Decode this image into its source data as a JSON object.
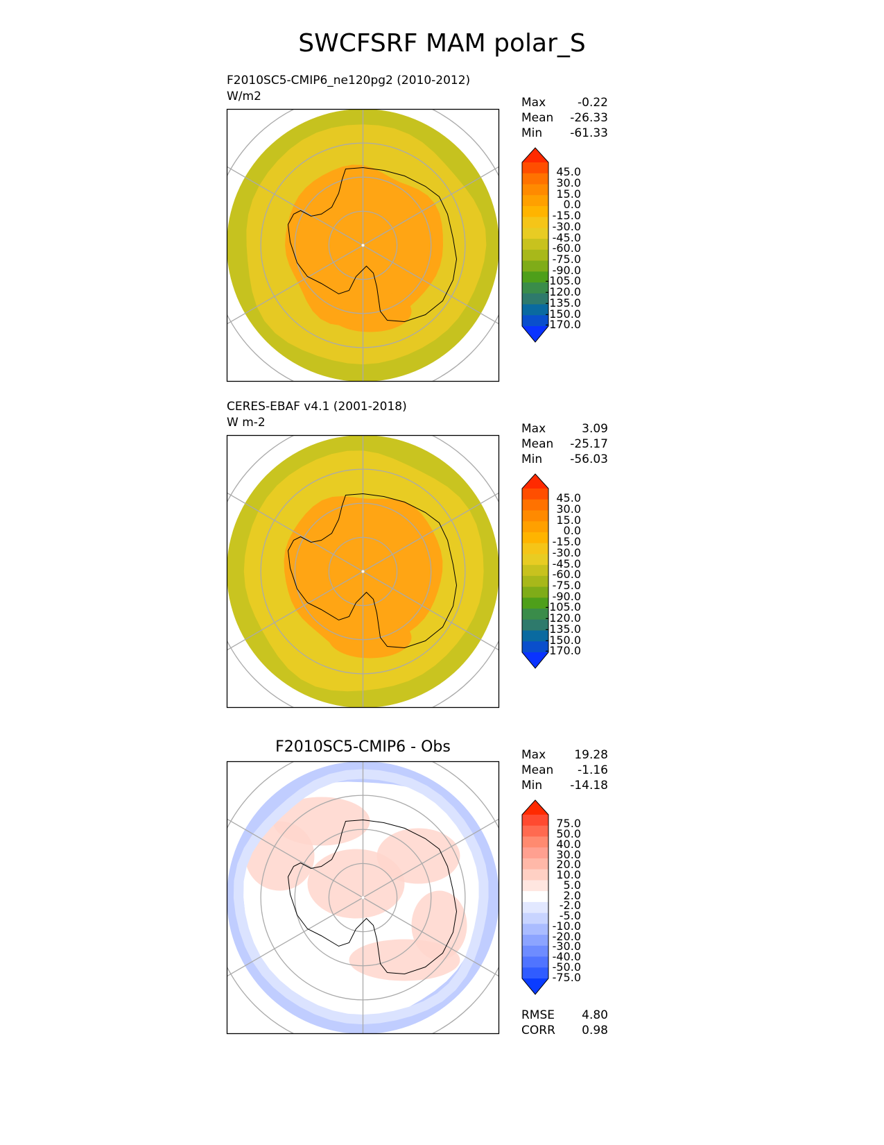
{
  "title": "SWCFSRF MAM polar_S",
  "panels": [
    {
      "id": "test",
      "title_lines": [
        "F2010SC5-CMIP6_ne120pg2 (2010-2012)",
        "W/m2"
      ],
      "center_title": "",
      "stats": [
        {
          "label": "Max",
          "value": "-0.22"
        },
        {
          "label": "Mean",
          "value": "-26.33"
        },
        {
          "label": "Min",
          "value": "-61.33"
        }
      ],
      "extra_stats": [],
      "colorbar": {
        "labels": [
          "45.0",
          "30.0",
          "15.0",
          "0.0",
          "-15.0",
          "-30.0",
          "-45.0",
          "-60.0",
          "-75.0",
          "-90.0",
          "-105.0",
          "-120.0",
          "-135.0",
          "-150.0",
          "-170.0"
        ],
        "colors": [
          "#ff2a00",
          "#ff4e00",
          "#ff7200",
          "#ff8a00",
          "#ffa000",
          "#ffb400",
          "#f5c518",
          "#e8cc23",
          "#c8c21e",
          "#a8b81a",
          "#7fac18",
          "#4e9f1a",
          "#3a8c4a",
          "#2e7a6c",
          "#0a6aa0",
          "#0a4fcc",
          "#0a33ff"
        ]
      },
      "map": {
        "type": "contour-map",
        "outer_color": "#c6c21f",
        "mid_color": "#e6c923",
        "inner_color": "#ffa514",
        "contour_values_w_m2": [
          -60,
          -45,
          -30
        ]
      }
    },
    {
      "id": "reference",
      "title_lines": [
        "CERES-EBAF v4.1 (2001-2018)",
        "W m-2"
      ],
      "center_title": "",
      "stats": [
        {
          "label": "Max",
          "value": "3.09"
        },
        {
          "label": "Mean",
          "value": "-25.17"
        },
        {
          "label": "Min",
          "value": "-56.03"
        }
      ],
      "extra_stats": [],
      "colorbar": {
        "labels": [
          "45.0",
          "30.0",
          "15.0",
          "0.0",
          "-15.0",
          "-30.0",
          "-45.0",
          "-60.0",
          "-75.0",
          "-90.0",
          "-105.0",
          "-120.0",
          "-135.0",
          "-150.0",
          "-170.0"
        ],
        "colors": [
          "#ff2a00",
          "#ff4e00",
          "#ff7200",
          "#ff8a00",
          "#ffa000",
          "#ffb400",
          "#f5c518",
          "#e8cc23",
          "#c8c21e",
          "#a8b81a",
          "#7fac18",
          "#4e9f1a",
          "#3a8c4a",
          "#2e7a6c",
          "#0a6aa0",
          "#0a4fcc",
          "#0a33ff"
        ]
      },
      "map": {
        "type": "contour-map",
        "outer_color": "#c9c420",
        "mid_color": "#e8cc23",
        "inner_color": "#ffa514",
        "contour_values_w_m2": [
          -60,
          -45,
          -30
        ]
      }
    },
    {
      "id": "diff",
      "title_lines": [],
      "center_title": "F2010SC5-CMIP6 - Obs",
      "stats": [
        {
          "label": "Max",
          "value": "19.28"
        },
        {
          "label": "Mean",
          "value": "-1.16"
        },
        {
          "label": "Min",
          "value": "-14.18"
        }
      ],
      "extra_stats": [
        {
          "label": "RMSE",
          "value": "4.80"
        },
        {
          "label": "CORR",
          "value": "0.98"
        }
      ],
      "colorbar": {
        "labels": [
          "75.0",
          "50.0",
          "40.0",
          "30.0",
          "20.0",
          "10.0",
          "5.0",
          "2.0",
          "-2.0",
          "-5.0",
          "-10.0",
          "-20.0",
          "-30.0",
          "-40.0",
          "-50.0",
          "-75.0"
        ],
        "colors": [
          "#ff2a00",
          "#ff4a30",
          "#ff6a50",
          "#ff8a70",
          "#ffa090",
          "#ffb8a8",
          "#ffd0c4",
          "#ffe6e0",
          "#ffffff",
          "#e2e8ff",
          "#c8d4ff",
          "#aabcff",
          "#8ca4ff",
          "#6e8cff",
          "#5074ff",
          "#305cff",
          "#0a3cff"
        ]
      },
      "map": {
        "type": "contour-map",
        "outer_color": "#c0cdff",
        "mid_color": "#ffffff",
        "inner_color": "#ffffff",
        "contour_values_w_m2": [
          -5,
          2,
          5
        ]
      }
    }
  ]
}
